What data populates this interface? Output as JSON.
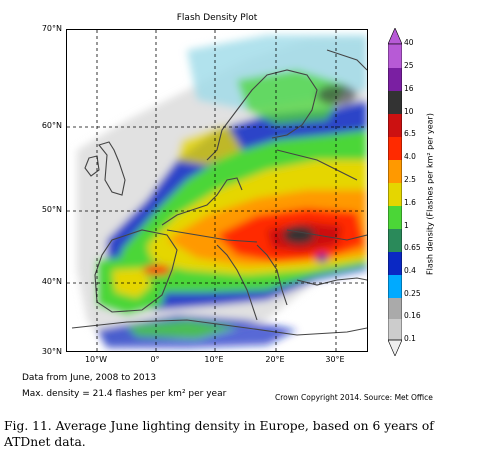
{
  "title": "Flash Density Plot",
  "lat_labels": [
    "70°N",
    "60°N",
    "50°N",
    "40°N",
    "30°N"
  ],
  "lon_labels": [
    "10°W",
    "0°",
    "10°E",
    "20°E",
    "30°E"
  ],
  "colorbar": {
    "label": "Flash density (Flashes per km² per year)",
    "ticks": [
      "40",
      "25",
      "16",
      "10",
      "6.5",
      "4.0",
      "2.5",
      "1.6",
      "1",
      "0.65",
      "0.4",
      "0.25",
      "0.16",
      "0.1"
    ],
    "colors": [
      "#b75ad6",
      "#7a1fa2",
      "#333333",
      "#cc1111",
      "#ff2a00",
      "#ff9900",
      "#e5d600",
      "#4bd637",
      "#2a8a5a",
      "#0a28c4",
      "#00aaff",
      "#aaaaaa",
      "#cccccc",
      "#eeeeee"
    ]
  },
  "note": {
    "line1": "Data from June, 2008 to 2013",
    "line2": "Max. density = 21.4 flashes per km² per year"
  },
  "credit": "Crown Copyright 2014. Source: Met Office",
  "caption": "Fig. 11. Average June lighting density in Europe, based on 6 years of ATDnet data."
}
